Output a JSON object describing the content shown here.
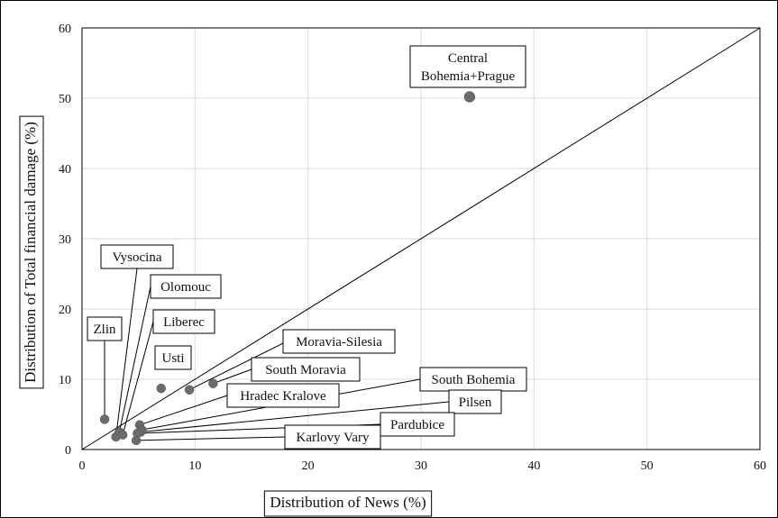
{
  "chart_data": {
    "type": "scatter",
    "title": "",
    "xlabel": "Distribution of News (%)",
    "ylabel": "Distribution of Total financial damage (%)",
    "xlim": [
      0,
      60
    ],
    "ylim": [
      0,
      60
    ],
    "xticks": [
      "0",
      "10",
      "20",
      "30",
      "40",
      "50",
      "60"
    ],
    "yticks": [
      "0",
      "10",
      "20",
      "30",
      "40",
      "50",
      "60"
    ],
    "grid": true,
    "reference_line": {
      "from": [
        0,
        0
      ],
      "to": [
        60,
        60
      ]
    },
    "marker_color": "#6b6b6b",
    "points": [
      {
        "name": "Central Bohemia+Prague",
        "label_lines": [
          "Central",
          "Bohemia+Prague"
        ],
        "x": 34.3,
        "y": 50.2
      },
      {
        "name": "Zlin",
        "x": 2.0,
        "y": 4.3
      },
      {
        "name": "Vysocina",
        "x": 3.0,
        "y": 1.8
      },
      {
        "name": "Olomouc",
        "x": 3.3,
        "y": 2.5
      },
      {
        "name": "Liberec",
        "x": 3.6,
        "y": 2.1
      },
      {
        "name": "Usti",
        "x": 7.0,
        "y": 8.7
      },
      {
        "name": "Moravia-Silesia",
        "x": 9.5,
        "y": 8.5
      },
      {
        "name": "South Moravia",
        "x": 11.6,
        "y": 9.4
      },
      {
        "name": "Hradec Kralove",
        "x": 5.1,
        "y": 3.5
      },
      {
        "name": "South Bohemia",
        "x": 5.3,
        "y": 2.8
      },
      {
        "name": "Pilsen",
        "x": 5.2,
        "y": 2.5
      },
      {
        "name": "Pardubice",
        "x": 4.9,
        "y": 2.3
      },
      {
        "name": "Karlovy Vary",
        "x": 4.8,
        "y": 1.3
      }
    ]
  }
}
